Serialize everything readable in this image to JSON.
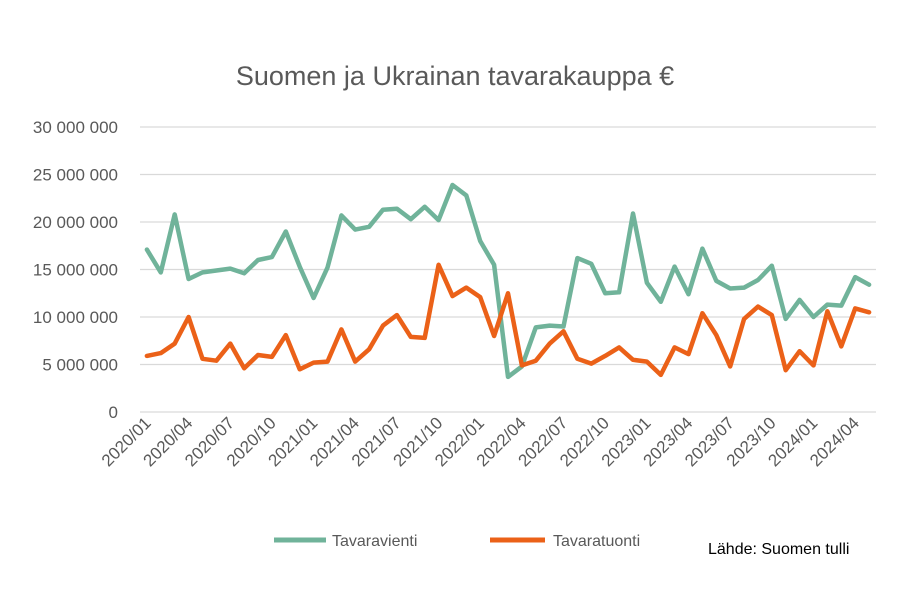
{
  "chart_data": {
    "type": "line",
    "title": "Suomen ja Ukrainan tavarakauppa €",
    "xlabel": "",
    "ylabel": "",
    "ylim": [
      0,
      30000000
    ],
    "yticks": [
      0,
      5000000,
      10000000,
      15000000,
      20000000,
      25000000,
      30000000
    ],
    "ytick_labels": [
      "0",
      "5 000 000",
      "10 000 000",
      "15 000 000",
      "20 000 000",
      "25 000 000",
      "30 000 000"
    ],
    "grid": true,
    "legend_position": "bottom",
    "x": [
      "2020/01",
      "2020/02",
      "2020/03",
      "2020/04",
      "2020/05",
      "2020/06",
      "2020/07",
      "2020/08",
      "2020/09",
      "2020/10",
      "2020/11",
      "2020/12",
      "2021/01",
      "2021/02",
      "2021/03",
      "2021/04",
      "2021/05",
      "2021/06",
      "2021/07",
      "2021/08",
      "2021/09",
      "2021/10",
      "2021/11",
      "2021/12",
      "2022/01",
      "2022/02",
      "2022/03",
      "2022/04",
      "2022/05",
      "2022/06",
      "2022/07",
      "2022/08",
      "2022/09",
      "2022/10",
      "2022/11",
      "2022/12",
      "2023/01",
      "2023/02",
      "2023/03",
      "2023/04",
      "2023/05",
      "2023/06",
      "2023/07",
      "2023/08",
      "2023/09",
      "2023/10",
      "2023/11",
      "2023/12",
      "2024/01",
      "2024/02",
      "2024/03",
      "2024/04",
      "2024/05"
    ],
    "xtick_labels": [
      "2020/01",
      "2020/04",
      "2020/07",
      "2020/10",
      "2021/01",
      "2021/04",
      "2021/07",
      "2021/10",
      "2022/01",
      "2022/04",
      "2022/07",
      "2022/10",
      "2023/01",
      "2023/04",
      "2023/07",
      "2023/10",
      "2024/01",
      "2024/04"
    ],
    "series": [
      {
        "name": "Tavaravienti",
        "color": "#70b39a",
        "values": [
          17100000,
          14700000,
          20800000,
          14000000,
          14700000,
          14900000,
          15100000,
          14600000,
          16000000,
          16300000,
          19000000,
          15300000,
          12000000,
          15200000,
          20700000,
          19200000,
          19500000,
          21300000,
          21400000,
          20300000,
          21600000,
          20200000,
          23900000,
          22800000,
          18000000,
          15500000,
          3700000,
          4800000,
          8900000,
          9100000,
          9000000,
          16200000,
          15600000,
          12500000,
          12600000,
          20900000,
          13600000,
          11600000,
          15300000,
          12400000,
          17200000,
          13800000,
          13000000,
          13100000,
          13900000,
          15400000,
          9800000,
          11800000,
          10000000,
          11300000,
          11200000,
          14200000,
          13400000
        ]
      },
      {
        "name": "Tavaratuonti",
        "color": "#eb6118",
        "values": [
          5900000,
          6200000,
          7200000,
          10000000,
          5600000,
          5400000,
          7200000,
          4600000,
          6000000,
          5800000,
          8100000,
          4500000,
          5200000,
          5300000,
          8700000,
          5300000,
          6600000,
          9100000,
          10200000,
          7900000,
          7800000,
          15500000,
          12200000,
          13100000,
          12100000,
          8000000,
          12500000,
          4900000,
          5400000,
          7200000,
          8500000,
          5600000,
          5100000,
          5900000,
          6800000,
          5500000,
          5300000,
          3900000,
          6800000,
          6100000,
          10400000,
          8100000,
          4800000,
          9800000,
          11100000,
          10200000,
          4400000,
          6400000,
          4900000,
          10600000,
          6900000,
          10900000,
          10500000
        ]
      }
    ],
    "source": "Lähde: Suomen tulli"
  }
}
